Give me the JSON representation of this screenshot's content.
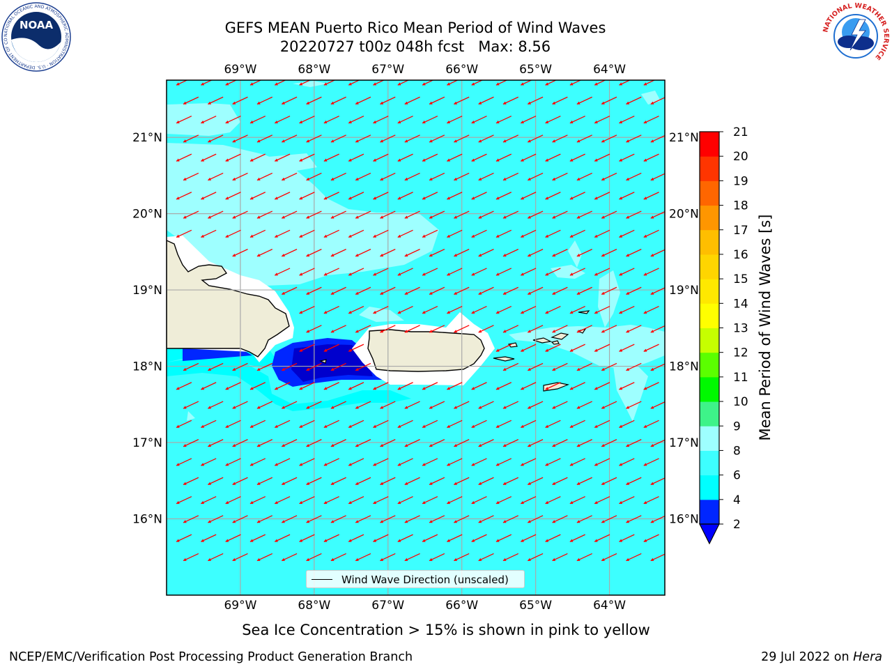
{
  "header": {
    "title_line1": "GEFS MEAN Puerto Rico Mean Period of Wind Waves",
    "title_line2": "20220727 t00z 048h fcst   Max: 8.56"
  },
  "logos": {
    "noaa_text": "NOAA",
    "noaa_ring_text": "NATIONAL OCEANIC AND ATMOSPHERIC ADMINISTRATION · U.S. DEPARTMENT OF COMMERCE",
    "nws_ring_text": "NATIONAL WEATHER SERVICE"
  },
  "map": {
    "extent": {
      "lon_min": -70.0,
      "lon_max": -63.25,
      "lat_min": 15.0,
      "lat_max": 21.75
    },
    "lon_ticks": [
      {
        "value": -69,
        "label": "69°W"
      },
      {
        "value": -68,
        "label": "68°W"
      },
      {
        "value": -67,
        "label": "67°W"
      },
      {
        "value": -66,
        "label": "66°W"
      },
      {
        "value": -65,
        "label": "65°W"
      },
      {
        "value": -64,
        "label": "64°W"
      }
    ],
    "lat_ticks": [
      {
        "value": 21,
        "label": "21°N"
      },
      {
        "value": 20,
        "label": "20°N"
      },
      {
        "value": 19,
        "label": "19°N"
      },
      {
        "value": 18,
        "label": "18°N"
      },
      {
        "value": 17,
        "label": "17°N"
      },
      {
        "value": 16,
        "label": "16°N"
      }
    ],
    "arrow_color": "#ff0000",
    "land_color": "#efedd8",
    "grid": true
  },
  "colorbar": {
    "label": "Mean Period of Wind Waves [s]",
    "ticks": [
      "2",
      "4",
      "6",
      "8",
      "9",
      "10",
      "11",
      "12",
      "13",
      "14",
      "15",
      "16",
      "17",
      "18",
      "19",
      "20",
      "21"
    ],
    "colors": [
      "#0026ff",
      "#00ffff",
      "#3dffff",
      "#9effff",
      "#3ef389",
      "#00f900",
      "#5bff00",
      "#c6ff00",
      "#ffff00",
      "#ffe800",
      "#ffd500",
      "#ffbe00",
      "#ff9600",
      "#ff6600",
      "#ff3500",
      "#ff0000"
    ],
    "under_color": "#0000ff"
  },
  "chart_data": {
    "type": "heatmap",
    "title": "GEFS MEAN Puerto Rico Mean Period of Wind Waves",
    "subtitle": "20220727 t00z 048h fcst   Max: 8.56",
    "variable": "Mean Period of Wind Waves [s]",
    "max_value": 8.56,
    "value_range": [
      2,
      21
    ],
    "xlim": [
      -70.0,
      -63.25
    ],
    "ylim": [
      15.0,
      21.75
    ],
    "vector_field": {
      "name": "Wind Wave Direction (unscaled)",
      "direction_deg_toward": 245,
      "color": "#ff0000"
    }
  },
  "legend": {
    "label": "Wind Wave Direction (unscaled)"
  },
  "notes": {
    "sea_ice": "Sea Ice Concentration > 15% is shown in pink to yellow"
  },
  "footer": {
    "left": "NCEP/EMC/Verification Post Processing Product Generation Branch",
    "right_date": "29 Jul 2022 on",
    "right_host": "Hera"
  }
}
